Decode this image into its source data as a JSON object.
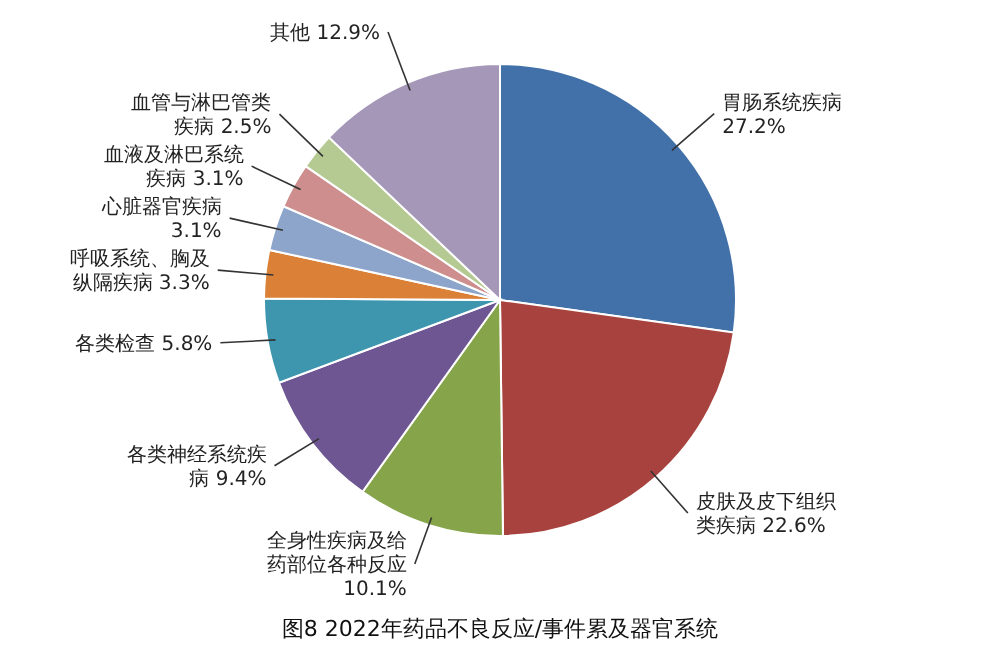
{
  "chart_data": {
    "type": "pie",
    "title": "图8 2022年药品不良反应/事件累及器官系统",
    "categories": [
      "胃肠系统疾病",
      "皮肤及皮下组织类疾病",
      "全身性疾病及给药部位各种反应",
      "各类神经系统疾病",
      "各类检查",
      "呼吸系统、胸及纵隔疾病",
      "心脏器官疾病",
      "血液及淋巴系统疾病",
      "血管与淋巴管类疾病",
      "其他"
    ],
    "values": [
      27.2,
      22.6,
      10.1,
      9.4,
      5.8,
      3.3,
      3.1,
      3.1,
      2.5,
      12.9
    ],
    "value_labels": [
      "27.2%",
      "22.6%",
      "10.1%",
      "9.4%",
      "5.8%",
      "3.3%",
      "3.1%",
      "3.1%",
      "2.5%",
      "12.9%"
    ],
    "colors": [
      "#4270a9",
      "#a8423f",
      "#86a44a",
      "#6d5692",
      "#3d96ae",
      "#da8137",
      "#8ea5cb",
      "#ce8e8d",
      "#b5ca92",
      "#a597b8"
    ]
  }
}
